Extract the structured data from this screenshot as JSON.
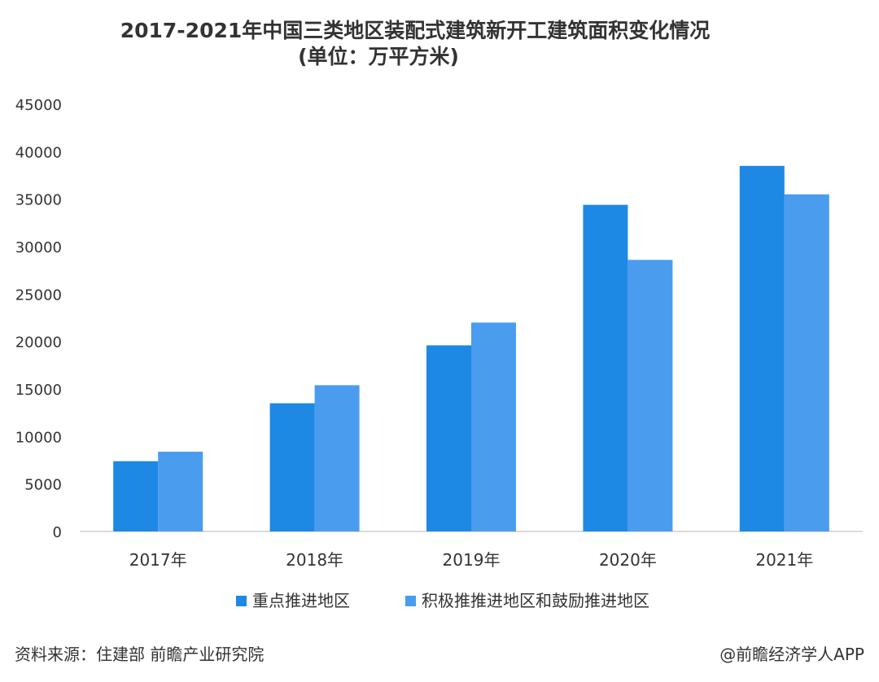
{
  "chart_data": {
    "type": "bar",
    "title": "2017-2021年中国三类地区装配式建筑新开工建筑面积变化情况",
    "subtitle": "(单位：万平方米)",
    "categories": [
      "2017年",
      "2018年",
      "2019年",
      "2020年",
      "2021年"
    ],
    "series": [
      {
        "name": "重点推进地区",
        "values": [
          7400,
          13500,
          19600,
          34400,
          38500
        ],
        "color": "#1E88E5"
      },
      {
        "name": "积极推推进地区和鼓励推进地区",
        "values": [
          8400,
          15400,
          22000,
          28600,
          35500
        ],
        "color": "#4A9CEE"
      }
    ],
    "yticks": [
      0,
      5000,
      10000,
      15000,
      20000,
      25000,
      30000,
      35000,
      40000,
      45000
    ],
    "ylim": [
      0,
      45000
    ],
    "grid": false,
    "legend_position": "bottom"
  },
  "footer": {
    "source": "资料来源：住建部 前瞻产业研究院",
    "brand": "@前瞻经济学人APP"
  }
}
